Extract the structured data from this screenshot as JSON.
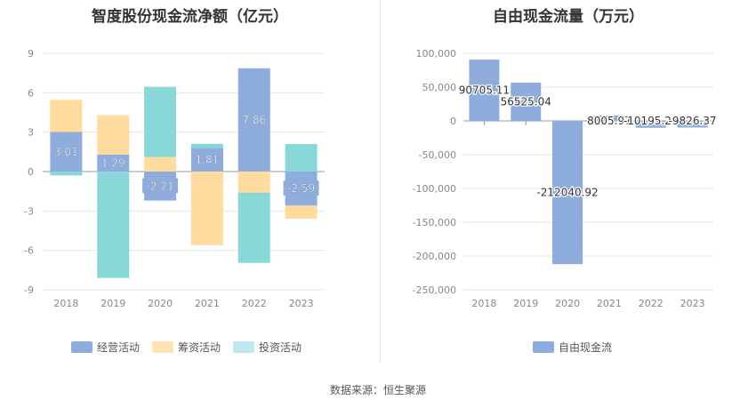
{
  "left": {
    "title": "智度股份现金流净额（亿元）",
    "legend": [
      {
        "label": "经营活动",
        "color": "#8EADDD"
      },
      {
        "label": "筹资活动",
        "color": "#FFDB9E"
      },
      {
        "label": "投资活动",
        "color": "#BDE8EC"
      }
    ]
  },
  "right": {
    "title": "自由现金流量（万元）",
    "legend": [
      {
        "label": "自由现金流",
        "color": "#8EADDD"
      }
    ]
  },
  "source": "数据来源：恒生聚源",
  "chart_data": [
    {
      "type": "bar",
      "stacked": true,
      "title": "智度股份现金流净额（亿元）",
      "categories": [
        "2018",
        "2019",
        "2020",
        "2021",
        "2022",
        "2023"
      ],
      "ylim": [
        -9,
        9
      ],
      "yticks": [
        9,
        6,
        3,
        0,
        -3,
        -6,
        -9
      ],
      "grid": true,
      "legend_position": "bottom",
      "series": [
        {
          "name": "经营活动",
          "color": "#8EADDD",
          "values": [
            3.01,
            1.29,
            -2.21,
            1.81,
            7.86,
            -2.59
          ],
          "labels": [
            "3.01",
            "1.29",
            "-2.21",
            "1.81",
            "7.86",
            "-2.59"
          ]
        },
        {
          "name": "筹资活动",
          "color": "#FFDB9E",
          "values": [
            2.45,
            3.0,
            1.1,
            -5.6,
            -1.6,
            -1.0
          ]
        },
        {
          "name": "投资活动",
          "color": "#88D8D8",
          "values": [
            -0.3,
            -8.1,
            5.35,
            0.3,
            -5.35,
            2.1
          ]
        }
      ]
    },
    {
      "type": "bar",
      "title": "自由现金流量（万元）",
      "categories": [
        "2018",
        "2019",
        "2020",
        "2021",
        "2022",
        "2023"
      ],
      "ylim": [
        -250000,
        100000
      ],
      "yticks": [
        "100,000",
        "50,000",
        "0",
        "-50,000",
        "-100,000",
        "-150,000",
        "-200,000",
        "-250,000"
      ],
      "ytick_values": [
        100000,
        50000,
        0,
        -50000,
        -100000,
        -150000,
        -200000,
        -250000
      ],
      "grid": true,
      "legend_position": "bottom",
      "series": [
        {
          "name": "自由现金流",
          "color": "#8EADDD",
          "values": [
            90705.11,
            56525.04,
            -212040.92,
            8005.97,
            -10195.23,
            -9826.37
          ],
          "labels": [
            "90705.11",
            "56525.04",
            "-212040.92",
            "8005.97",
            "-10195.23",
            "-9826.37"
          ]
        }
      ]
    }
  ]
}
